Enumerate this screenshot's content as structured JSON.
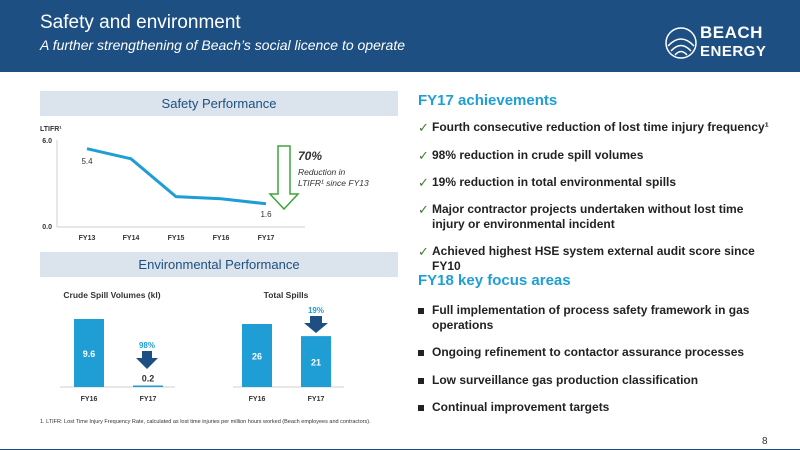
{
  "header": {
    "title": "Safety and environment",
    "subtitle": "A further strengthening of Beach’s social licence to operate",
    "logo_line1": "BEACH",
    "logo_line2": "ENERGY"
  },
  "safety": {
    "section_title": "Safety Performance",
    "ylabel": "LTIFR¹",
    "callout_pct": "70%",
    "callout_line1": "Reduction in",
    "callout_line2": "LTIFR¹ since FY13"
  },
  "environmental": {
    "section_title": "Environmental Performance",
    "crude_callout": "98%",
    "spills_callout": "19%"
  },
  "chart_data": [
    {
      "type": "line",
      "title": "",
      "ylabel": "LTIFR¹",
      "x": [
        "FY13",
        "FY14",
        "FY15",
        "FY16",
        "FY17"
      ],
      "series": [
        {
          "values": [
            5.4,
            4.7,
            2.1,
            1.95,
            1.6
          ]
        }
      ],
      "labeled_values": {
        "FY13": "5.4",
        "FY17": "1.6"
      },
      "ylim": [
        0,
        6
      ],
      "yticks": [
        "0.0",
        "6.0"
      ],
      "colors": {
        "line": "#1f9ed6"
      }
    },
    {
      "type": "bar",
      "title": "Crude Spill Volumes (kl)",
      "categories": [
        "FY16",
        "FY17"
      ],
      "values": [
        9.6,
        0.2
      ],
      "ylim": [
        0,
        9.6
      ],
      "colors": {
        "bar": "#1f9ed6"
      }
    },
    {
      "type": "bar",
      "title": "Total Spills",
      "categories": [
        "FY16",
        "FY17"
      ],
      "values": [
        26,
        21
      ],
      "ylim": [
        0,
        26
      ],
      "colors": {
        "bar": "#1f9ed6"
      }
    }
  ],
  "achievements": {
    "title": "FY17 achievements",
    "items": [
      "Fourth consecutive reduction of lost time injury frequency¹",
      "98% reduction in crude spill volumes",
      "19% reduction in total environmental spills",
      "Major contractor projects undertaken without lost time injury or environmental incident",
      "Achieved highest HSE system external audit score since FY10"
    ]
  },
  "focus": {
    "title": "FY18 key focus areas",
    "items": [
      "Full implementation of process safety framework in gas operations",
      "Ongoing refinement to contactor assurance processes",
      "Low surveillance gas production classification",
      "Continual improvement targets"
    ]
  },
  "footnote": "1. LTIFR: Lost Time Injury Frequency Rate, calculated as lost time injuries per million hours worked (Beach employees and contractors).",
  "page_number": "8",
  "colors": {
    "brand_navy": "#1d4f82",
    "accent_blue": "#1f9ed6",
    "check_green": "#3a7d2c"
  }
}
